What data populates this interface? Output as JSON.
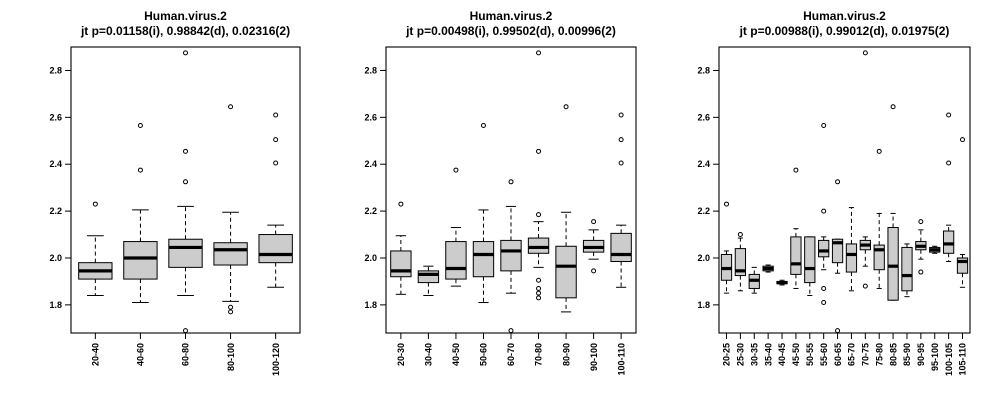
{
  "chart_data": [
    {
      "type": "boxplot",
      "title": "Human.virus.2",
      "subtitle": "jt p=0.01158(i), 0.98842(d), 0.02316(2)",
      "xlabel": "",
      "ylabel": "",
      "ylim": [
        1.68,
        2.9
      ],
      "yticks": [
        1.8,
        2.0,
        2.2,
        2.4,
        2.6,
        2.8
      ],
      "ytick_labels": [
        "1.8",
        "2.0",
        "2.2",
        "2.4",
        "2.6",
        "2.8"
      ],
      "grid": false,
      "categories": [
        "20-40",
        "40-60",
        "60-80",
        "80-100",
        "100-120"
      ],
      "boxes": [
        {
          "whisker_low": 1.84,
          "q1": 1.91,
          "median": 1.945,
          "q3": 1.98,
          "whisker_high": 2.095,
          "outliers": [
            2.23
          ]
        },
        {
          "whisker_low": 1.81,
          "q1": 1.91,
          "median": 2.0,
          "q3": 2.07,
          "whisker_high": 2.205,
          "outliers": [
            2.375,
            2.565
          ]
        },
        {
          "whisker_low": 1.84,
          "q1": 1.96,
          "median": 2.045,
          "q3": 2.08,
          "whisker_high": 2.22,
          "outliers": [
            1.69,
            2.325,
            2.455,
            2.875
          ]
        },
        {
          "whisker_low": 1.815,
          "q1": 1.97,
          "median": 2.035,
          "q3": 2.065,
          "whisker_high": 2.195,
          "outliers": [
            1.77,
            1.79,
            2.645
          ]
        },
        {
          "whisker_low": 1.875,
          "q1": 1.98,
          "median": 2.015,
          "q3": 2.1,
          "whisker_high": 2.14,
          "outliers": [
            2.405,
            2.505,
            2.61
          ]
        }
      ]
    },
    {
      "type": "boxplot",
      "title": "Human.virus.2",
      "subtitle": "jt p=0.00498(i), 0.99502(d), 0.00996(2)",
      "xlabel": "",
      "ylabel": "",
      "ylim": [
        1.68,
        2.9
      ],
      "yticks": [
        1.8,
        2.0,
        2.2,
        2.4,
        2.6,
        2.8
      ],
      "ytick_labels": [
        "1.8",
        "2.0",
        "2.2",
        "2.4",
        "2.6",
        "2.8"
      ],
      "grid": false,
      "categories": [
        "20-30",
        "30-40",
        "40-50",
        "50-60",
        "60-70",
        "70-80",
        "80-90",
        "90-100",
        "100-110"
      ],
      "boxes": [
        {
          "whisker_low": 1.845,
          "q1": 1.92,
          "median": 1.945,
          "q3": 2.03,
          "whisker_high": 2.095,
          "outliers": [
            2.23
          ]
        },
        {
          "whisker_low": 1.84,
          "q1": 1.895,
          "median": 1.93,
          "q3": 1.945,
          "whisker_high": 1.965,
          "outliers": []
        },
        {
          "whisker_low": 1.88,
          "q1": 1.91,
          "median": 1.955,
          "q3": 2.07,
          "whisker_high": 2.13,
          "outliers": [
            2.375
          ]
        },
        {
          "whisker_low": 1.81,
          "q1": 1.92,
          "median": 2.015,
          "q3": 2.07,
          "whisker_high": 2.205,
          "outliers": [
            2.565
          ]
        },
        {
          "whisker_low": 1.85,
          "q1": 1.945,
          "median": 2.03,
          "q3": 2.075,
          "whisker_high": 2.22,
          "outliers": [
            1.69,
            2.325
          ]
        },
        {
          "whisker_low": 1.96,
          "q1": 2.02,
          "median": 2.045,
          "q3": 2.085,
          "whisker_high": 2.155,
          "outliers": [
            1.83,
            1.85,
            1.87,
            1.905,
            2.185,
            2.455,
            2.875
          ]
        },
        {
          "whisker_low": 1.77,
          "q1": 1.83,
          "median": 1.965,
          "q3": 2.05,
          "whisker_high": 2.195,
          "outliers": [
            2.645
          ]
        },
        {
          "whisker_low": 1.995,
          "q1": 2.025,
          "median": 2.045,
          "q3": 2.075,
          "whisker_high": 2.12,
          "outliers": [
            1.945,
            2.155
          ]
        },
        {
          "whisker_low": 1.875,
          "q1": 1.985,
          "median": 2.015,
          "q3": 2.105,
          "whisker_high": 2.14,
          "outliers": [
            2.405,
            2.505,
            2.61
          ]
        }
      ]
    },
    {
      "type": "boxplot",
      "title": "Human.virus.2",
      "subtitle": "jt p=0.00988(i), 0.99012(d), 0.01975(2)",
      "xlabel": "",
      "ylabel": "",
      "ylim": [
        1.68,
        2.9
      ],
      "yticks": [
        1.8,
        2.0,
        2.2,
        2.4,
        2.6,
        2.8
      ],
      "ytick_labels": [
        "1.8",
        "2.0",
        "2.2",
        "2.4",
        "2.6",
        "2.8"
      ],
      "grid": false,
      "categories": [
        "20-25",
        "25-30",
        "30-35",
        "35-40",
        "40-45",
        "45-50",
        "50-55",
        "55-60",
        "60-65",
        "65-70",
        "70-75",
        "75-80",
        "80-85",
        "85-90",
        "90-95",
        "95-100",
        "100-105",
        "105-110"
      ],
      "boxes": [
        {
          "whisker_low": 1.85,
          "q1": 1.905,
          "median": 1.955,
          "q3": 2.015,
          "whisker_high": 2.03,
          "outliers": [
            2.23
          ]
        },
        {
          "whisker_low": 1.86,
          "q1": 1.925,
          "median": 1.945,
          "q3": 2.04,
          "whisker_high": 2.085,
          "outliers": [
            2.1
          ]
        },
        {
          "whisker_low": 1.85,
          "q1": 1.87,
          "median": 1.905,
          "q3": 1.93,
          "whisker_high": 1.96,
          "outliers": []
        },
        {
          "whisker_low": 1.94,
          "q1": 1.945,
          "median": 1.955,
          "q3": 1.965,
          "whisker_high": 1.97,
          "outliers": []
        },
        {
          "whisker_low": 1.885,
          "q1": 1.89,
          "median": 1.895,
          "q3": 1.9,
          "whisker_high": 1.905,
          "outliers": []
        },
        {
          "whisker_low": 1.87,
          "q1": 1.93,
          "median": 1.975,
          "q3": 2.09,
          "whisker_high": 2.125,
          "outliers": [
            2.375
          ]
        },
        {
          "whisker_low": 1.84,
          "q1": 1.895,
          "median": 1.955,
          "q3": 2.09,
          "whisker_high": 2.09,
          "outliers": []
        },
        {
          "whisker_low": 1.95,
          "q1": 2.005,
          "median": 2.03,
          "q3": 2.075,
          "whisker_high": 2.09,
          "outliers": [
            1.81,
            1.87,
            2.2,
            2.565
          ]
        },
        {
          "whisker_low": 1.935,
          "q1": 1.98,
          "median": 2.065,
          "q3": 2.08,
          "whisker_high": 2.08,
          "outliers": [
            1.69,
            2.325
          ]
        },
        {
          "whisker_low": 1.86,
          "q1": 1.94,
          "median": 2.015,
          "q3": 2.06,
          "whisker_high": 2.215,
          "outliers": []
        },
        {
          "whisker_low": 1.965,
          "q1": 2.035,
          "median": 2.055,
          "q3": 2.075,
          "whisker_high": 2.09,
          "outliers": [
            1.88,
            2.875
          ]
        },
        {
          "whisker_low": 1.87,
          "q1": 1.95,
          "median": 2.035,
          "q3": 2.055,
          "whisker_high": 2.19,
          "outliers": [
            2.455
          ]
        },
        {
          "whisker_low": 1.82,
          "q1": 1.82,
          "median": 1.965,
          "q3": 2.13,
          "whisker_high": 2.19,
          "outliers": [
            2.645
          ]
        },
        {
          "whisker_low": 1.835,
          "q1": 1.86,
          "median": 1.925,
          "q3": 2.045,
          "whisker_high": 2.06,
          "outliers": []
        },
        {
          "whisker_low": 1.995,
          "q1": 2.035,
          "median": 2.05,
          "q3": 2.07,
          "whisker_high": 2.12,
          "outliers": [
            1.94,
            2.155
          ]
        },
        {
          "whisker_low": 2.02,
          "q1": 2.025,
          "median": 2.035,
          "q3": 2.045,
          "whisker_high": 2.05,
          "outliers": []
        },
        {
          "whisker_low": 1.985,
          "q1": 2.02,
          "median": 2.06,
          "q3": 2.115,
          "whisker_high": 2.14,
          "outliers": [
            2.405,
            2.61
          ]
        },
        {
          "whisker_low": 1.875,
          "q1": 1.935,
          "median": 1.985,
          "q3": 2.0,
          "whisker_high": 2.015,
          "outliers": [
            2.505
          ]
        }
      ]
    }
  ]
}
